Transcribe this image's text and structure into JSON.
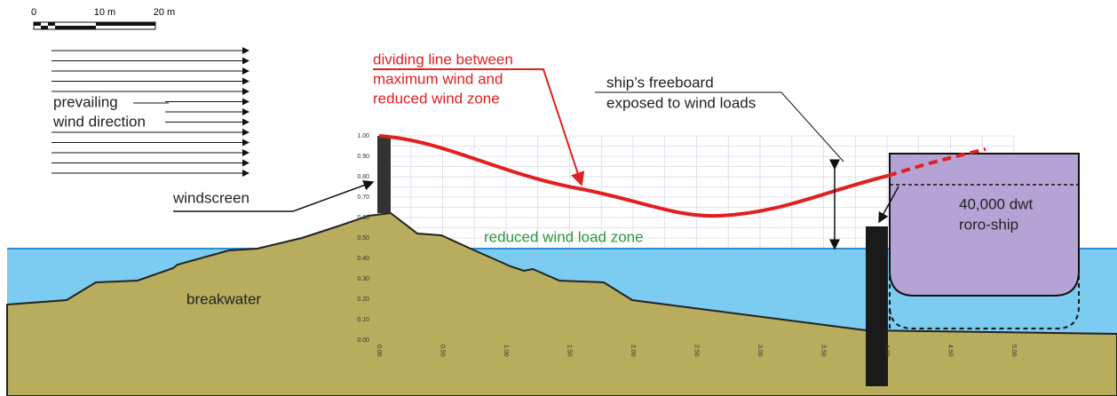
{
  "scale": {
    "labels": [
      "0",
      "10 m",
      "20 m"
    ]
  },
  "wind": {
    "label_lines": [
      "prevailing",
      "wind direction"
    ]
  },
  "windscreen": "windscreen",
  "dividing_line": {
    "label_lines": [
      "dividing line between",
      "maximum wind and",
      "reduced wind zone"
    ]
  },
  "freeboard": {
    "label_lines": [
      "ship’s freeboard",
      "exposed to wind loads"
    ]
  },
  "reduced_zone": "reduced wind load zone",
  "breakwater": "breakwater",
  "ship": {
    "label_lines": [
      "40,000 dwt",
      "roro-ship"
    ]
  },
  "plot": {
    "y_tick_labels": [
      "0.00",
      "0.10",
      "0.20",
      "0.30",
      "0.40",
      "0.50",
      "0.60",
      "0.70",
      "0.80",
      "0.90",
      "1.00"
    ],
    "x_tick_labels": [
      "0.00",
      "0.50",
      "1.00",
      "1.50",
      "2.00",
      "2.50",
      "3.00",
      "3.50",
      "4.00",
      "4.50",
      "5.00"
    ]
  }
}
